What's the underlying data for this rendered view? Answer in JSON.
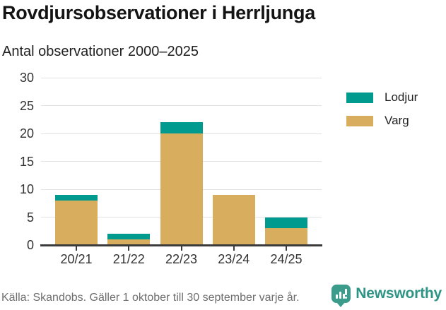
{
  "header": {
    "title": "Rovdjursobservationer i Herrljunga",
    "subtitle": "Antal observationer 2000–2025"
  },
  "chart_data": {
    "type": "bar",
    "stacked": true,
    "title": "Rovdjursobservationer i Herrljunga",
    "subtitle": "Antal observationer 2000–2025",
    "categories": [
      "20/21",
      "21/22",
      "22/23",
      "23/24",
      "24/25"
    ],
    "series": [
      {
        "name": "Varg",
        "color": "#d9ad5e",
        "values": [
          8,
          1,
          20,
          9,
          3
        ]
      },
      {
        "name": "Lodjur",
        "color": "#009b8e",
        "values": [
          1,
          1,
          2,
          0,
          2
        ]
      }
    ],
    "totals": [
      9,
      2,
      22,
      9,
      5
    ],
    "legend": [
      {
        "label": "Lodjur",
        "color": "#009b8e"
      },
      {
        "label": "Varg",
        "color": "#d9ad5e"
      }
    ],
    "legend_position": "right",
    "xlabel": "",
    "ylabel": "",
    "ylim": [
      0,
      30
    ],
    "yticks": [
      0,
      5,
      10,
      15,
      20,
      25,
      30
    ],
    "grid": true
  },
  "footer": {
    "source": "Källa: Skandobs. Gäller 1 oktober till 30 september varje år.",
    "brand": "Newsworthy",
    "brand_icon": "speech-bubble-bar-chart-icon",
    "brand_color": "#2d9486"
  },
  "colors": {
    "lodjur": "#009b8e",
    "varg": "#d9ad5e",
    "gridline": "#e2e2e2",
    "axis": "#3b3b3b",
    "text": "#333333",
    "source_text": "#6e6e6e"
  }
}
